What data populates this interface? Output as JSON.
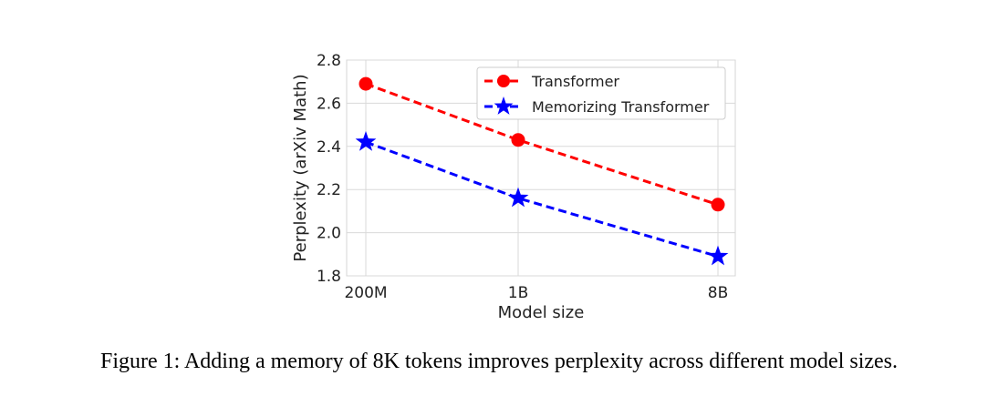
{
  "chart_data": {
    "type": "line",
    "categories": [
      "200M",
      "1B",
      "8B"
    ],
    "series": [
      {
        "name": "Transformer",
        "values": [
          2.69,
          2.43,
          2.13
        ],
        "color": "#ff0000",
        "marker": "circle",
        "linestyle": "dashed"
      },
      {
        "name": "Memorizing Transformer",
        "values": [
          2.42,
          2.16,
          1.89
        ],
        "color": "#0000ff",
        "marker": "star",
        "linestyle": "dashed"
      }
    ],
    "xlabel": "Model size",
    "ylabel": "Perplexity (arXiv Math)",
    "ylim": [
      1.8,
      2.8
    ],
    "yticks": [
      "1.8",
      "2.0",
      "2.2",
      "2.4",
      "2.6",
      "2.8"
    ],
    "grid": true,
    "legend": "top-right"
  },
  "caption": "Figure 1: Adding a memory of 8K tokens improves perplexity across different model sizes."
}
